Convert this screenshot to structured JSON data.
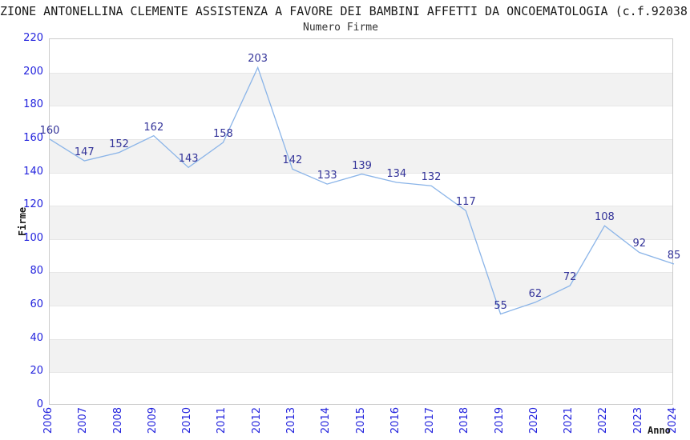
{
  "header": {
    "title": "ZIONE ANTONELLINA CLEMENTE ASSISTENZA A FAVORE DEI BAMBINI AFFETTI DA ONCOEMATOLOGIA (c.f.92038",
    "subtitle": "Numero Firme"
  },
  "chart_data": {
    "type": "line",
    "title": "Numero Firme",
    "xlabel": "Anno",
    "ylabel": "Firme",
    "x": [
      "2006",
      "2007",
      "2008",
      "2009",
      "2010",
      "2011",
      "2012",
      "2013",
      "2014",
      "2015",
      "2016",
      "2017",
      "2018",
      "2019",
      "2020",
      "2021",
      "2022",
      "2023",
      "2024"
    ],
    "series": [
      {
        "name": "Numero Firme",
        "values": [
          160,
          147,
          152,
          162,
          143,
          158,
          203,
          142,
          133,
          139,
          134,
          132,
          117,
          55,
          62,
          72,
          108,
          92,
          85
        ]
      }
    ],
    "ylim": [
      0,
      220
    ],
    "ytick_step": 20,
    "yticks": [
      0,
      20,
      40,
      60,
      80,
      100,
      120,
      140,
      160,
      180,
      200,
      220
    ],
    "legend": "none",
    "grid": "alternating-horizontal-bands",
    "point_labels": true,
    "colors": {
      "line": "#8ab4e8",
      "tick_label": "#2222dd",
      "point_label": "#333399",
      "band": "#f2f2f2",
      "gridline": "#e6e6e6",
      "frame": "#cccccc",
      "title_text": "#1a1a1a",
      "subtitle_text": "#333333",
      "background": "#ffffff"
    }
  }
}
